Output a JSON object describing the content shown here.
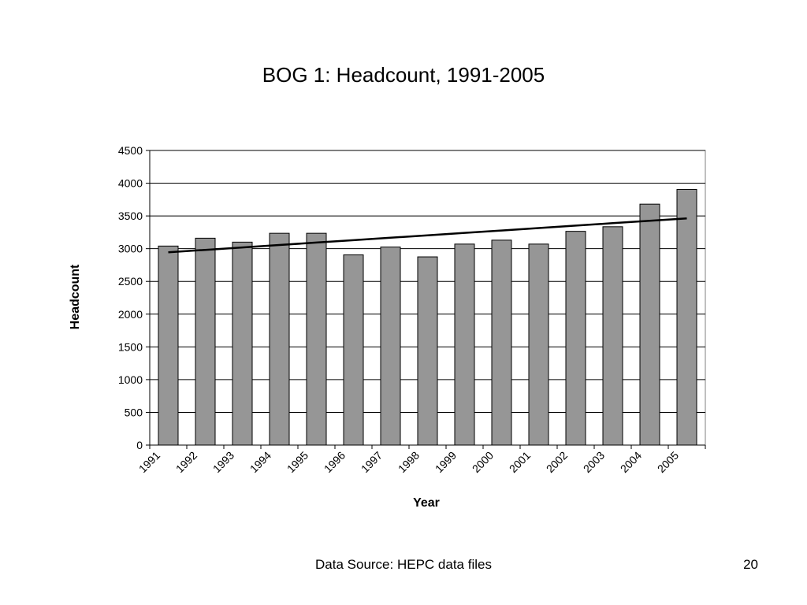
{
  "slide": {
    "title": "BOG 1: Headcount, 1991-2005",
    "footer_source": "Data Source: HEPC data files",
    "page_number": "20"
  },
  "colors": {
    "bar_fill": "#969696",
    "bar_stroke": "#000000",
    "trend_line": "#000000",
    "gridline": "#000000"
  },
  "chart_data": {
    "type": "bar",
    "categories": [
      "1991",
      "1992",
      "1993",
      "1994",
      "1995",
      "1996",
      "1997",
      "1998",
      "1999",
      "2000",
      "2001",
      "2002",
      "2003",
      "2004",
      "2005"
    ],
    "values": [
      3040,
      3160,
      3100,
      3235,
      3235,
      2905,
      3025,
      2875,
      3070,
      3130,
      3070,
      3265,
      3335,
      3680,
      3905
    ],
    "trendline": {
      "type": "linear",
      "values": [
        2945,
        2982,
        3019,
        3056,
        3093,
        3130,
        3167,
        3204,
        3241,
        3278,
        3315,
        3352,
        3389,
        3426,
        3463
      ]
    },
    "xlabel": "Year",
    "ylabel": "Headcount",
    "ylim": [
      0,
      4500
    ],
    "yticks": [
      0,
      500,
      1000,
      1500,
      2000,
      2500,
      3000,
      3500,
      4000,
      4500
    ],
    "grid": true,
    "legend": "none"
  }
}
